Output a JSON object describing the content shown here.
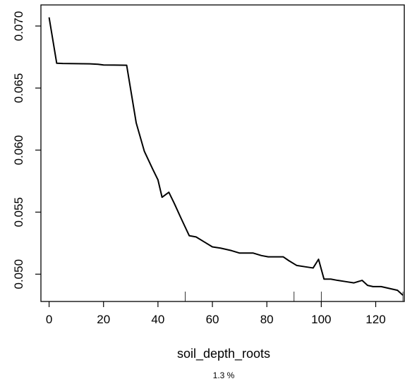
{
  "chart_data": {
    "type": "line",
    "xlabel": "soil_depth_roots",
    "ylabel": "",
    "footnote": "1.3 %",
    "xlim": [
      -3,
      130.5
    ],
    "ylim": [
      0.0478,
      0.0717
    ],
    "x_ticks": [
      0,
      20,
      40,
      60,
      80,
      100,
      120
    ],
    "x_tick_labels": [
      "0",
      "20",
      "40",
      "60",
      "80",
      "100",
      "120"
    ],
    "y_ticks": [
      0.05,
      0.055,
      0.06,
      0.065,
      0.07
    ],
    "y_tick_labels": [
      "0.050",
      "0.055",
      "0.060",
      "0.065",
      "0.070"
    ],
    "rug": [
      50,
      90,
      100,
      130
    ],
    "grid": false,
    "line_color": "#000000",
    "series": [
      {
        "x": [
          0,
          2.8,
          5,
          10,
          15,
          18,
          20,
          24,
          28.5,
          32,
          35,
          38,
          40,
          41.5,
          44,
          46,
          48.5,
          51.5,
          54,
          57,
          60,
          63,
          67,
          70,
          75,
          78,
          80.5,
          83,
          86,
          88,
          91,
          94,
          97,
          99,
          101,
          103.5,
          106,
          109,
          112,
          115,
          117,
          119,
          122,
          124,
          128,
          130
        ],
        "y": [
          0.0707,
          0.067,
          0.06698,
          0.06697,
          0.06695,
          0.06692,
          0.06686,
          0.06685,
          0.06684,
          0.0622,
          0.0599,
          0.0585,
          0.0576,
          0.0562,
          0.0566,
          0.0557,
          0.0545,
          0.0531,
          0.053,
          0.0526,
          0.0522,
          0.0521,
          0.0519,
          0.0517,
          0.0517,
          0.0515,
          0.0514,
          0.0514,
          0.0514,
          0.0511,
          0.0507,
          0.0506,
          0.0505,
          0.0512,
          0.0496,
          0.0496,
          0.0495,
          0.0494,
          0.0493,
          0.0495,
          0.0491,
          0.049,
          0.049,
          0.0489,
          0.0487,
          0.0483
        ]
      }
    ]
  }
}
